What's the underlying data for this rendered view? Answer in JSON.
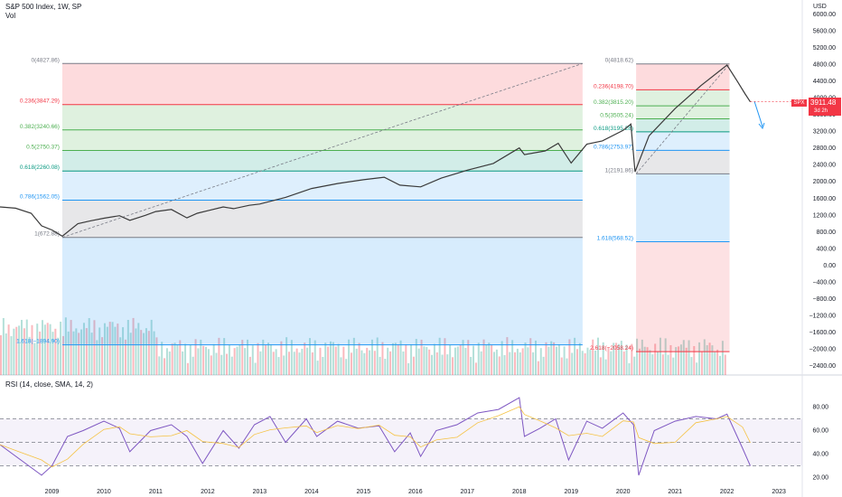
{
  "header": {
    "title": "S&P 500 Index, 1W, SP",
    "volume_label": "Vol",
    "rsi_label": "RSI (14, close, SMA, 14, 2)",
    "currency": "USD"
  },
  "price_tag": {
    "symbol": "SPX",
    "value": "3911.48",
    "countdown": "3d 2h"
  },
  "colors": {
    "price_line": "#3a3a3a",
    "rsi_line": "#7e57c2",
    "rsi_ma": "#f5c242",
    "fib_red": "#f23645",
    "fib_green": "#4caf50",
    "fib_teal": "#089981",
    "fib_blue": "#2196f3",
    "fib_gray": "#787b86",
    "tag_red": "#f23645"
  },
  "chart_data": [
    {
      "type": "line",
      "title": "S&P 500 Index, 1W, SP",
      "x_axis_ticks": [
        "2009",
        "2010",
        "2011",
        "2012",
        "2013",
        "2014",
        "2015",
        "2016",
        "2017",
        "2018",
        "2019",
        "2020",
        "2021",
        "2022",
        "2023"
      ],
      "y_axis_ticks": [
        "6000.00",
        "5600.00",
        "5200.00",
        "4800.00",
        "4400.00",
        "4000.00",
        "3600.00",
        "3200.00",
        "2800.00",
        "2400.00",
        "2000.00",
        "1600.00",
        "1200.00",
        "800.00",
        "400.00",
        "0.00",
        "−400.00",
        "−800.00",
        "−1200.00",
        "−1600.00",
        "−2000.00",
        "−2400.00"
      ],
      "ylim": [
        -2400,
        6000
      ],
      "series": [
        {
          "x": [
            2008.0,
            2008.3,
            2008.6,
            2008.8,
            2009.0,
            2009.2,
            2009.5,
            2009.75,
            2010.0,
            2010.3,
            2010.5,
            2010.8,
            2011.0,
            2011.3,
            2011.6,
            2011.8,
            2012.0,
            2012.3,
            2012.5,
            2012.8,
            2013.0,
            2013.5,
            2014.0,
            2014.5,
            2015.0,
            2015.4,
            2015.7,
            2016.1,
            2016.5,
            2017.0,
            2017.5,
            2018.0,
            2018.1,
            2018.5,
            2018.75,
            2019.0,
            2019.3,
            2019.6,
            2020.0,
            2020.15,
            2020.23,
            2020.5,
            2021.0,
            2021.5,
            2022.0,
            2022.2,
            2022.35,
            2022.45
          ],
          "values": [
            1400,
            1370,
            1250,
            950,
            850,
            700,
            1000,
            1070,
            1130,
            1190,
            1080,
            1200,
            1290,
            1340,
            1140,
            1250,
            1310,
            1400,
            1360,
            1440,
            1470,
            1630,
            1840,
            1960,
            2050,
            2110,
            1920,
            1880,
            2090,
            2280,
            2440,
            2810,
            2650,
            2740,
            2920,
            2450,
            2900,
            2980,
            3230,
            3380,
            2240,
            3100,
            3750,
            4300,
            4790,
            4400,
            4100,
            3911
          ]
        }
      ],
      "fibonacci": [
        {
          "levels": [
            "0(4827.86)",
            "0.236(3847.29)",
            "0.382(3240.66)",
            "0.5(2750.37)",
            "0.618(2260.08)",
            "0.786(1562.05)",
            "1(672.88)",
            "1.618(−1894.90)"
          ]
        },
        {
          "levels": [
            "0(4818.62)",
            "0.236(4198.70)",
            "0.382(3815.20)",
            "0.5(3505.24)",
            "0.618(3195.28)",
            "0.786(2753.97)",
            "1(2191.86)",
            "1.618(568.52)",
            "2.618(−2058.24)"
          ]
        }
      ]
    },
    {
      "type": "line",
      "title": "RSI (14, close, SMA, 14, 2)",
      "y_axis_ticks": [
        "80.00",
        "60.00",
        "40.00",
        "20.00"
      ],
      "ylim": [
        15,
        95
      ],
      "bands": [
        70,
        50,
        30
      ],
      "series": [
        {
          "x": [
            2008.0,
            2008.4,
            2008.8,
            2009.0,
            2009.3,
            2009.6,
            2010.0,
            2010.3,
            2010.5,
            2010.9,
            2011.3,
            2011.6,
            2011.9,
            2012.3,
            2012.6,
            2012.9,
            2013.2,
            2013.5,
            2013.9,
            2014.1,
            2014.5,
            2014.9,
            2015.3,
            2015.6,
            2015.9,
            2016.1,
            2016.4,
            2016.8,
            2017.2,
            2017.6,
            2018.0,
            2018.1,
            2018.4,
            2018.7,
            2018.95,
            2019.3,
            2019.6,
            2020.0,
            2020.2,
            2020.3,
            2020.6,
            2021.0,
            2021.4,
            2021.8,
            2022.0,
            2022.3,
            2022.45
          ],
          "values": [
            48,
            35,
            22,
            30,
            55,
            60,
            68,
            62,
            42,
            60,
            65,
            55,
            32,
            60,
            45,
            65,
            72,
            50,
            70,
            55,
            68,
            62,
            64,
            42,
            58,
            38,
            60,
            65,
            75,
            78,
            88,
            55,
            62,
            70,
            35,
            68,
            62,
            75,
            65,
            22,
            60,
            68,
            72,
            70,
            74,
            45,
            30
          ]
        }
      ]
    }
  ]
}
